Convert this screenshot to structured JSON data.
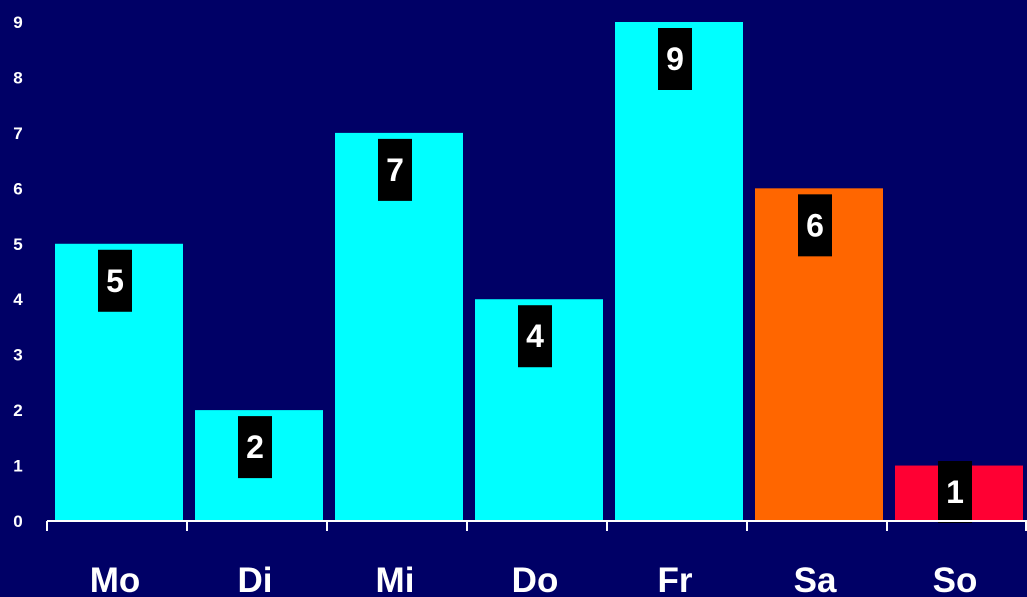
{
  "chart_data": {
    "type": "bar",
    "categories": [
      "Mo",
      "Di",
      "Mi",
      "Do",
      "Fr",
      "Sa",
      "So"
    ],
    "values": [
      5,
      2,
      7,
      4,
      9,
      6,
      1
    ],
    "bar_colors": [
      "#00ffff",
      "#00ffff",
      "#00ffff",
      "#00ffff",
      "#00ffff",
      "#ff6600",
      "#ff0033"
    ],
    "data_labels": [
      "5",
      "2",
      "7",
      "4",
      "9",
      "6",
      "1"
    ],
    "y_ticks": [
      "0",
      "1",
      "2",
      "3",
      "4",
      "5",
      "6",
      "7",
      "8",
      "9"
    ],
    "ylim": [
      0,
      9
    ],
    "grid": false,
    "background_color": "#000066",
    "label_box_color": "#000000",
    "text_color": "#ffffff"
  }
}
